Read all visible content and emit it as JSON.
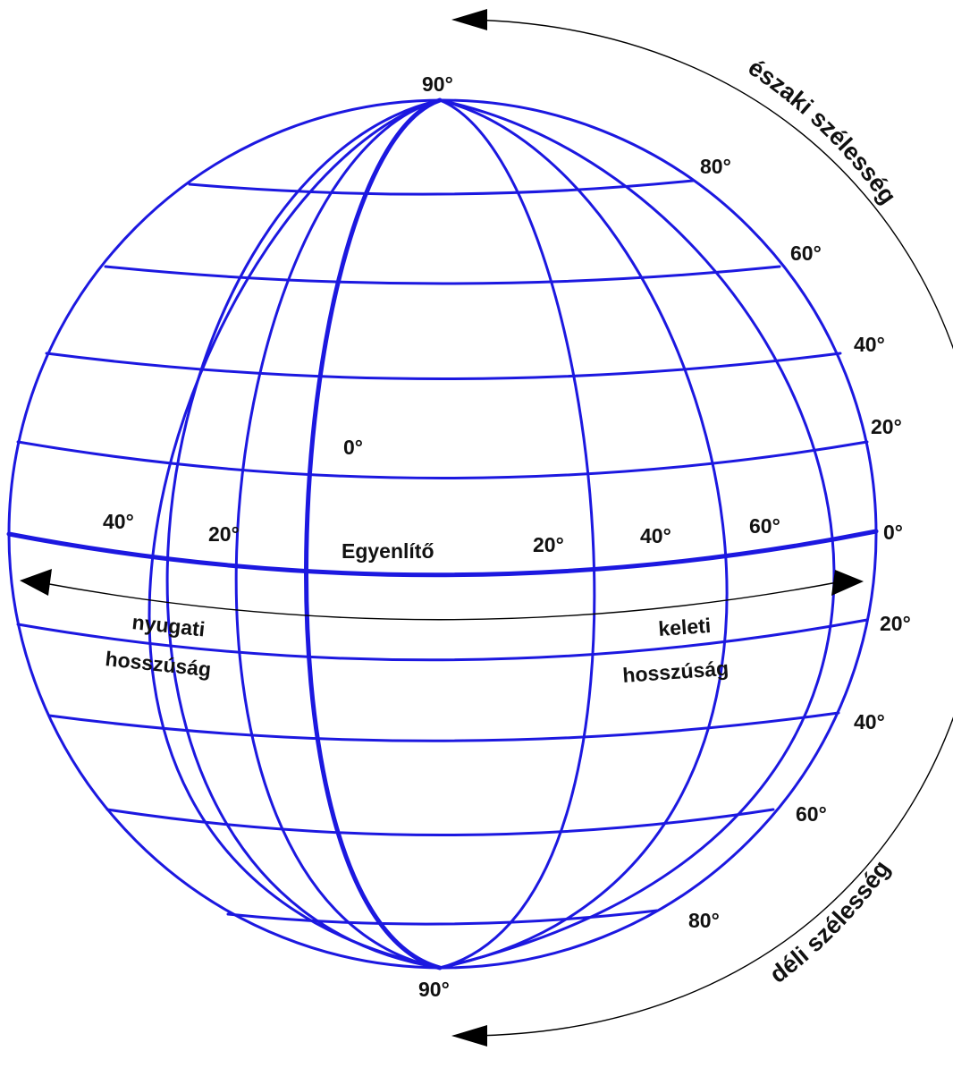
{
  "colors": {
    "grid": "#1c18e0",
    "text": "#111111",
    "arrow": "#000000",
    "background": "#ffffff"
  },
  "labels": {
    "north_pole": "90°",
    "south_pole": "90°",
    "prime_meridian": "0°",
    "equator_name": "Egyenlítő",
    "north_latitude": "északi szélesség",
    "south_latitude": "déli szélesség",
    "west_longitude_line1": "nyugati",
    "west_longitude_line2": "hosszúság",
    "east_longitude_line1": "keleti",
    "east_longitude_line2": "hosszúság"
  },
  "latitude_labels": {
    "north": [
      "80°",
      "60°",
      "40°",
      "20°"
    ],
    "equator": "0°",
    "south": [
      "20°",
      "40°",
      "60°",
      "80°"
    ]
  },
  "longitude_labels": {
    "west": [
      "40°",
      "20°"
    ],
    "east": [
      "20°",
      "40°",
      "60°"
    ]
  }
}
